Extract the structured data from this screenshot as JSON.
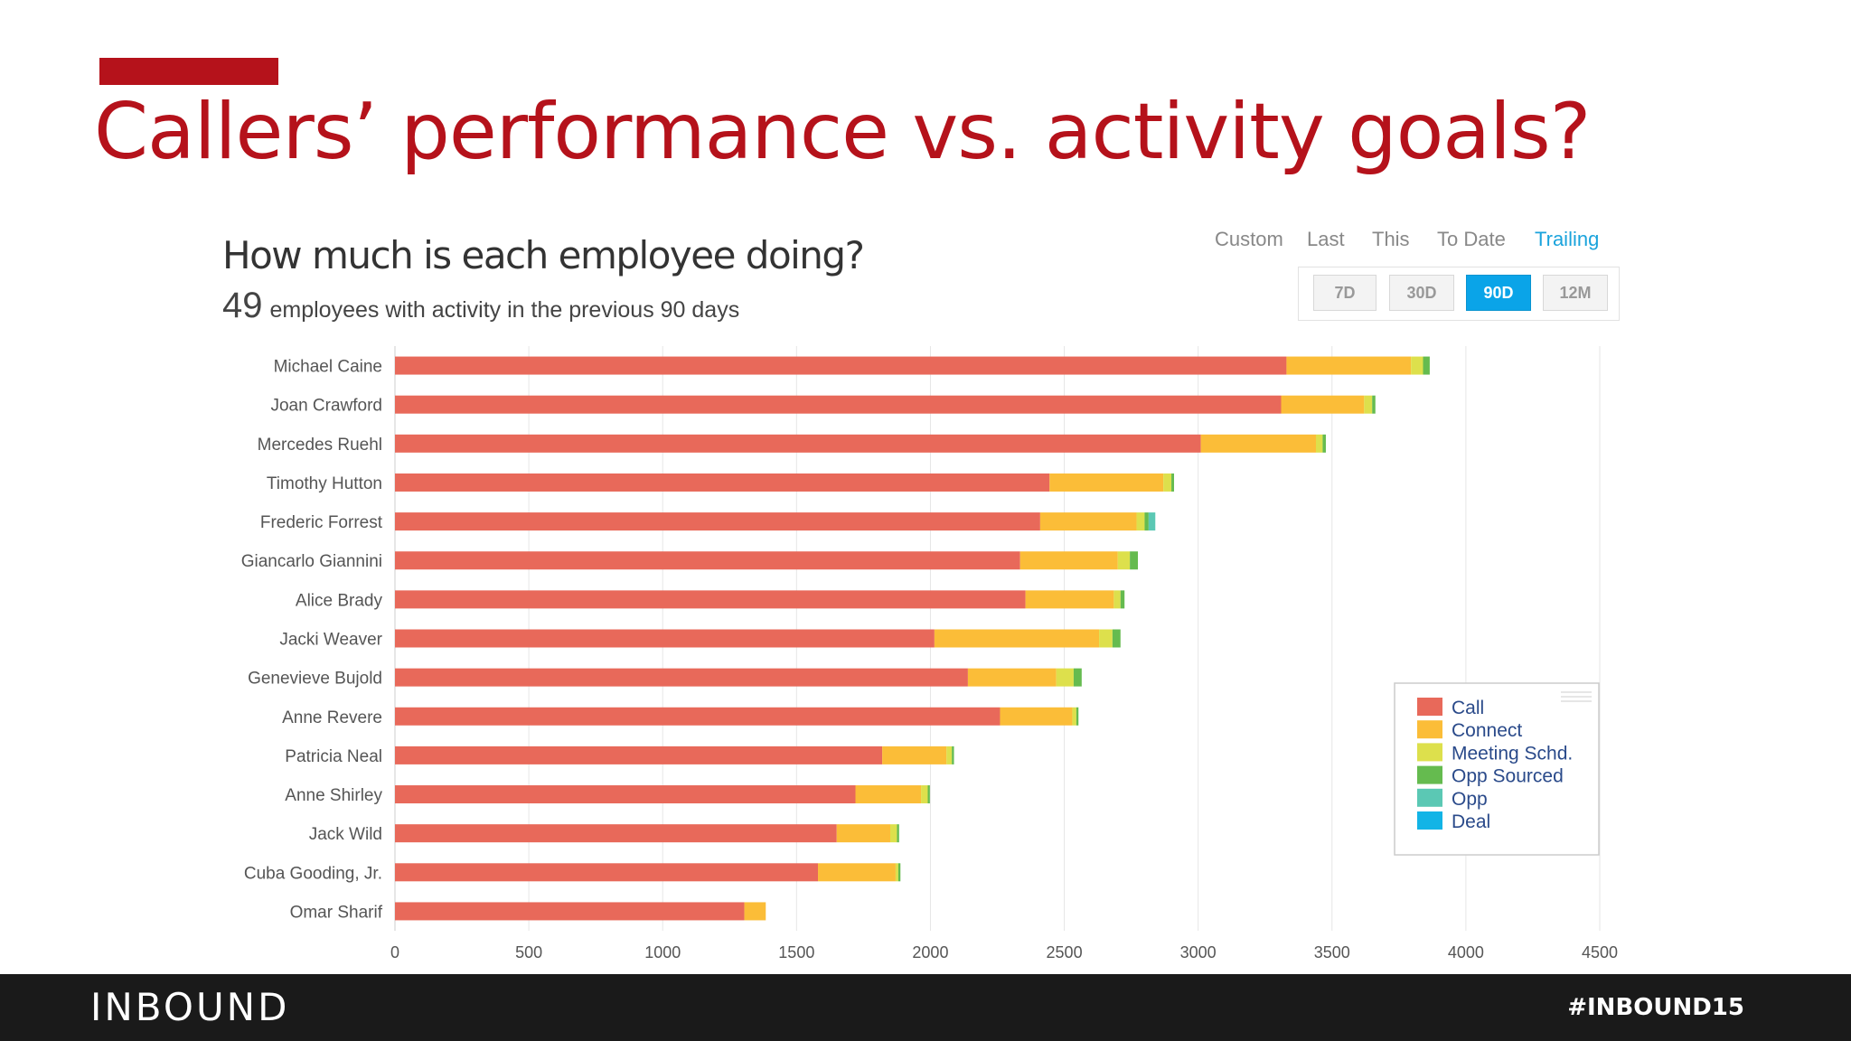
{
  "slide": {
    "title": "Callers’ performance vs. activity goals?"
  },
  "chart_header": {
    "title": "How much is each employee doing?",
    "count": "49",
    "description": "employees with activity in the previous 90 days"
  },
  "range_tabs": [
    {
      "label": "Custom",
      "active": false
    },
    {
      "label": "Last",
      "active": false
    },
    {
      "label": "This",
      "active": false
    },
    {
      "label": "To Date",
      "active": false
    },
    {
      "label": "Trailing",
      "active": true
    }
  ],
  "period_buttons": [
    {
      "label": "7D",
      "active": false
    },
    {
      "label": "30D",
      "active": false
    },
    {
      "label": "90D",
      "active": true
    },
    {
      "label": "12M",
      "active": false
    }
  ],
  "footer": {
    "logo": "INBOUND",
    "hashtag": "#INBOUND15"
  },
  "colors": {
    "accent": "#b5121b",
    "active_button": "#0aa4e8",
    "active_tab": "#1aa3dc"
  },
  "chart_data": {
    "type": "bar",
    "orientation": "horizontal",
    "stacked": true,
    "categories": [
      "Michael Caine",
      "Joan Crawford",
      "Mercedes Ruehl",
      "Timothy Hutton",
      "Frederic Forrest",
      "Giancarlo Giannini",
      "Alice Brady",
      "Jacki Weaver",
      "Genevieve Bujold",
      "Anne Revere",
      "Patricia Neal",
      "Anne Shirley",
      "Jack Wild",
      "Cuba Gooding, Jr.",
      "Omar Sharif"
    ],
    "series": [
      {
        "name": "Call",
        "color": "#e8695a",
        "values": [
          3330,
          3310,
          3010,
          2445,
          2410,
          2335,
          2355,
          2015,
          2140,
          2260,
          1820,
          1720,
          1650,
          1580,
          1305
        ]
      },
      {
        "name": "Connect",
        "color": "#fbbd38",
        "values": [
          465,
          310,
          430,
          425,
          360,
          365,
          330,
          615,
          330,
          270,
          240,
          245,
          200,
          290,
          80
        ]
      },
      {
        "name": "Meeting Schd.",
        "color": "#dde04c",
        "values": [
          45,
          30,
          25,
          30,
          30,
          45,
          25,
          50,
          65,
          15,
          20,
          25,
          25,
          10,
          0
        ]
      },
      {
        "name": "Opp Sourced",
        "color": "#65bb4f",
        "values": [
          25,
          12,
          12,
          10,
          15,
          30,
          15,
          30,
          30,
          8,
          8,
          8,
          8,
          8,
          0
        ]
      },
      {
        "name": "Opp",
        "color": "#5bc8b4",
        "values": [
          0,
          0,
          0,
          0,
          25,
          0,
          0,
          0,
          0,
          0,
          0,
          0,
          0,
          0,
          0
        ]
      },
      {
        "name": "Deal",
        "color": "#12b4e6",
        "values": [
          0,
          0,
          0,
          0,
          0,
          0,
          0,
          0,
          0,
          0,
          0,
          0,
          0,
          0,
          0
        ]
      }
    ],
    "xlim": [
      0,
      4500
    ],
    "xticks": [
      0,
      500,
      1000,
      1500,
      2000,
      2500,
      3000,
      3500,
      4000,
      4500
    ],
    "grid": true,
    "legend_position": "bottom-right"
  }
}
